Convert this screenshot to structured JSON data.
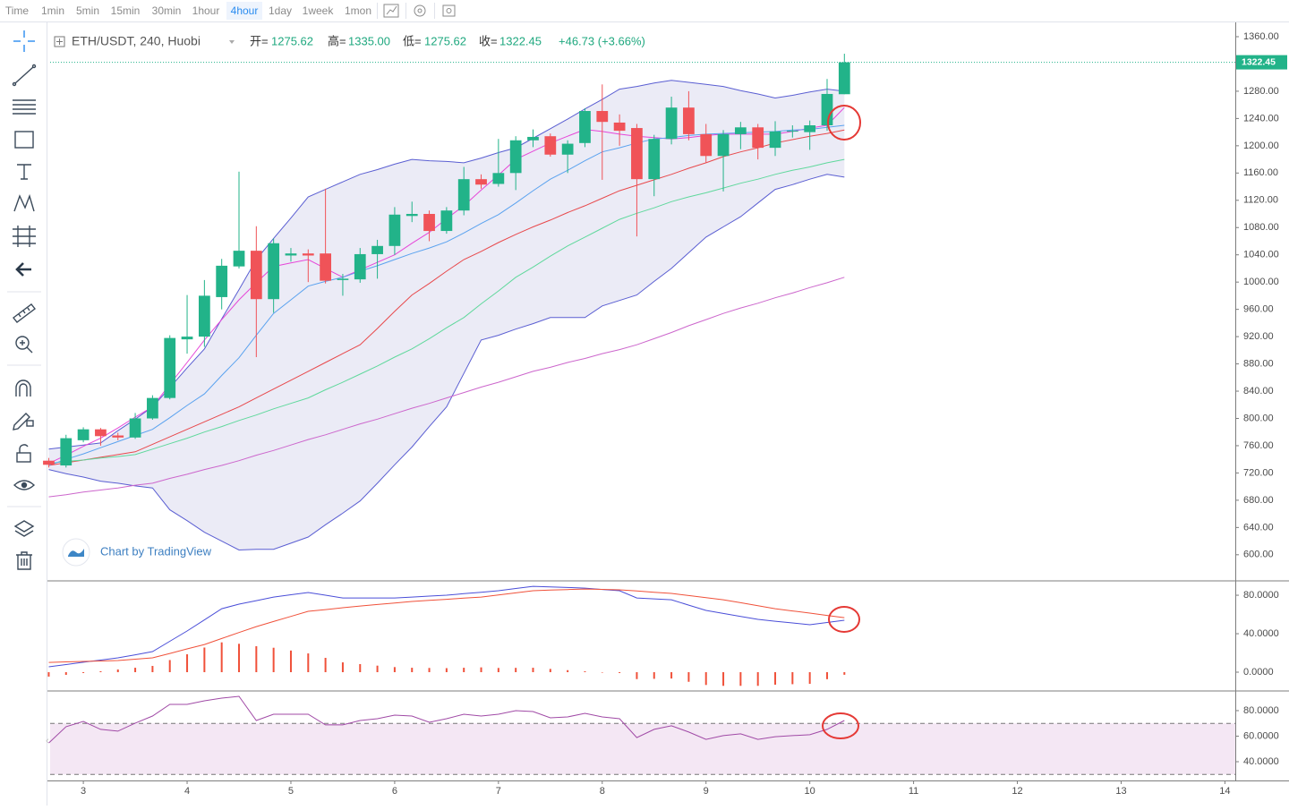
{
  "toolbar": {
    "intervals": [
      "Time",
      "1min",
      "5min",
      "15min",
      "30min",
      "1hour",
      "4hour",
      "1day",
      "1week",
      "1mon"
    ],
    "active": 6
  },
  "header": {
    "symbol": "ETH/USDT, 240, Huobi",
    "open_label": "开=",
    "open": "1275.62",
    "high_label": "高=",
    "high": "1335.00",
    "low_label": "低=",
    "low": "1275.62",
    "close_label": "收=",
    "close": "1322.45",
    "change": "+46.73 (+3.66%)"
  },
  "watermark": "Chart by TradingView",
  "chart_data": [
    {
      "type": "candlestick",
      "title": "ETH/USDT, 240, Huobi",
      "x": [
        2.6667,
        2.8333,
        3,
        3.1667,
        3.3333,
        3.5,
        3.6667,
        3.8333,
        4,
        4.1667,
        4.3333,
        4.5,
        4.6667,
        4.8333,
        5,
        5.1667,
        5.3333,
        5.5,
        5.6667,
        5.8333,
        6,
        6.1667,
        6.3333,
        6.5,
        6.6667,
        6.8333,
        7,
        7.1667,
        7.3333,
        7.5,
        7.6667,
        7.8333,
        8,
        8.1667,
        8.3333,
        8.5,
        8.6667,
        8.8333,
        9,
        9.1667,
        9.3333,
        9.5,
        9.6667,
        9.8333,
        10,
        10.1667,
        10.3333
      ],
      "open": [
        738,
        731,
        768,
        784,
        775,
        772,
        800,
        830,
        916,
        920,
        978,
        1023,
        1046,
        975,
        1039,
        1042,
        1042,
        1003,
        1004,
        1041,
        1053,
        1097,
        1100,
        1075,
        1105,
        1151,
        1144,
        1160,
        1208,
        1214,
        1187,
        1204,
        1251,
        1234,
        1226,
        1151,
        1210,
        1256,
        1217,
        1185,
        1217,
        1227,
        1197,
        1221,
        1220,
        1230,
        1275.62
      ],
      "high": [
        742,
        776,
        787,
        786,
        779,
        808,
        834,
        922,
        981,
        1003,
        1034,
        1162,
        1082,
        1064,
        1050,
        1048,
        1137,
        1012,
        1050,
        1062,
        1110,
        1118,
        1105,
        1110,
        1169,
        1158,
        1210,
        1214,
        1224,
        1218,
        1208,
        1255,
        1290,
        1246,
        1232,
        1216,
        1272,
        1280,
        1232,
        1223,
        1235,
        1232,
        1236,
        1230,
        1237,
        1298,
        1335
      ],
      "low": [
        728,
        728,
        765,
        760,
        768,
        770,
        798,
        828,
        895,
        905,
        960,
        1020,
        890,
        955,
        1030,
        1000,
        998,
        980,
        999,
        1005,
        1040,
        1088,
        1060,
        1071,
        1098,
        1137,
        1140,
        1135,
        1198,
        1184,
        1160,
        1198,
        1150,
        1200,
        1067,
        1126,
        1202,
        1208,
        1175,
        1133,
        1195,
        1180,
        1185,
        1212,
        1194,
        1222,
        1275.62
      ],
      "close": [
        732,
        771,
        784,
        774,
        772,
        800,
        830,
        918,
        920,
        980,
        1024,
        1046,
        975,
        1057,
        1042,
        1039,
        1002,
        1005,
        1041,
        1053,
        1099,
        1100,
        1075,
        1105,
        1151,
        1143,
        1160,
        1208,
        1213,
        1187,
        1203,
        1251,
        1235,
        1222,
        1151,
        1210,
        1256,
        1217,
        1185,
        1217,
        1227,
        1197,
        1221,
        1222,
        1230,
        1276,
        1322.45
      ],
      "up_color": "#22b389",
      "down_color": "#f05358",
      "band": {
        "color": "#5a5ed2",
        "fill": "#e7e7f4",
        "upper": [
          755,
          758,
          761,
          764,
          782,
          799,
          817,
          845,
          874,
          902,
          946,
          989,
          1033,
          1064,
          1094,
          1125,
          1136,
          1147,
          1158,
          1165,
          1173,
          1180,
          1178,
          1177,
          1175,
          1182,
          1190,
          1197,
          1211,
          1225,
          1239,
          1254,
          1268,
          1283,
          1287,
          1292,
          1296,
          1293,
          1290,
          1287,
          1281,
          1276,
          1270,
          1274,
          1279,
          1283,
          1280
        ],
        "lower": [
          725,
          719,
          714,
          708,
          705,
          701,
          698,
          666,
          650,
          633,
          620,
          607,
          608,
          608,
          617,
          626,
          644,
          661,
          679,
          705,
          732,
          758,
          788,
          817,
          866,
          915,
          922,
          931,
          939,
          948,
          948,
          948,
          965,
          973,
          981,
          1001,
          1020,
          1043,
          1066,
          1081,
          1096,
          1116,
          1136,
          1143,
          1151,
          1158,
          1154
        ]
      },
      "series": [
        {
          "color": "#e8484b",
          "values": [
            731,
            735,
            739,
            743,
            747,
            751,
            762,
            773,
            784,
            795,
            806,
            817,
            830,
            843,
            856,
            869,
            882,
            895,
            908,
            932,
            957,
            981,
            998,
            1016,
            1033,
            1045,
            1058,
            1070,
            1081,
            1091,
            1102,
            1112,
            1123,
            1134,
            1142,
            1150,
            1158,
            1167,
            1175,
            1184,
            1191,
            1197,
            1204,
            1209,
            1214,
            1218,
            1223
          ]
        },
        {
          "color": "#5fd89c",
          "values": [
            734,
            737,
            739,
            742,
            744,
            747,
            755,
            763,
            771,
            780,
            788,
            797,
            805,
            814,
            822,
            830,
            842,
            853,
            865,
            877,
            890,
            902,
            917,
            933,
            948,
            968,
            987,
            1007,
            1022,
            1038,
            1053,
            1066,
            1079,
            1092,
            1101,
            1109,
            1118,
            1125,
            1131,
            1138,
            1145,
            1151,
            1158,
            1164,
            1169,
            1175,
            1180
          ]
        },
        {
          "color": "#cc66cc",
          "values": [
            685,
            688,
            692,
            695,
            698,
            702,
            705,
            712,
            718,
            725,
            731,
            738,
            746,
            753,
            761,
            769,
            776,
            784,
            792,
            799,
            807,
            815,
            822,
            830,
            838,
            846,
            853,
            861,
            869,
            875,
            882,
            888,
            895,
            901,
            908,
            917,
            926,
            936,
            945,
            954,
            962,
            969,
            977,
            984,
            992,
            999,
            1007
          ]
        },
        {
          "color": "#e646d8",
          "values": [
            734,
            746,
            759,
            771,
            786,
            802,
            817,
            850,
            882,
            915,
            945,
            974,
            999,
            1023,
            1028,
            1033,
            1020,
            1007,
            1018,
            1029,
            1040,
            1057,
            1073,
            1093,
            1112,
            1135,
            1157,
            1180,
            1192,
            1204,
            1214,
            1224,
            1221,
            1217,
            1214,
            1212,
            1210,
            1212,
            1215,
            1217,
            1217,
            1217,
            1217,
            1221,
            1226,
            1230,
            1256
          ]
        },
        {
          "color": "#5aa2ef",
          "values": [
            731,
            740,
            748,
            757,
            766,
            775,
            784,
            801,
            819,
            836,
            863,
            889,
            922,
            954,
            974,
            994,
            1001,
            1007,
            1016,
            1024,
            1033,
            1042,
            1050,
            1059,
            1072,
            1086,
            1099,
            1116,
            1134,
            1151,
            1164,
            1178,
            1191,
            1197,
            1204,
            1210,
            1212,
            1215,
            1217,
            1218,
            1219,
            1220,
            1221,
            1223,
            1224,
            1227,
            1230
          ]
        }
      ],
      "xlim": [
        2.68,
        14.1
      ],
      "xticks": [
        3,
        4,
        5,
        6,
        7,
        8,
        9,
        10,
        11,
        12,
        13,
        14
      ],
      "ylim": [
        563,
        1381
      ],
      "yticks": [
        {
          "value": 600,
          "label": "600.00"
        },
        {
          "value": 640,
          "label": "640.00"
        },
        {
          "value": 680,
          "label": "680.00"
        },
        {
          "value": 720,
          "label": "720.00"
        },
        {
          "value": 760,
          "label": "760.00"
        },
        {
          "value": 800,
          "label": "800.00"
        },
        {
          "value": 840,
          "label": "840.00"
        },
        {
          "value": 880,
          "label": "880.00"
        },
        {
          "value": 920,
          "label": "920.00"
        },
        {
          "value": 960,
          "label": "960.00"
        },
        {
          "value": 1000,
          "label": "1000.00"
        },
        {
          "value": 1040,
          "label": "1040.00"
        },
        {
          "value": 1080,
          "label": "1080.00"
        },
        {
          "value": 1120,
          "label": "1120.00"
        },
        {
          "value": 1160,
          "label": "1160.00"
        },
        {
          "value": 1200,
          "label": "1200.00"
        },
        {
          "value": 1240,
          "label": "1240.00"
        },
        {
          "value": 1280,
          "label": "1280.00"
        },
        {
          "value": 1320,
          "label": "1320.00"
        },
        {
          "value": 1360,
          "label": "1360.00"
        }
      ],
      "grid": false
    },
    {
      "type": "line",
      "series": [
        {
          "color": "#f0513a",
          "style": "bar",
          "values": [
            -4.6,
            -2.8,
            -0.9,
            1.0,
            2.8,
            4.6,
            6.5,
            12.6,
            18.6,
            25.6,
            31,
            29.5,
            27,
            25.4,
            22.5,
            19.5,
            14.9,
            10.2,
            8.4,
            6.8,
            5.3,
            4.6,
            4.4,
            4.2,
            4.6,
            5,
            4.4,
            4.5,
            4.6,
            3.4,
            2.1,
            0.9,
            -0.1,
            -0.9,
            -7.2,
            -6.9,
            -6.6,
            -10,
            -13.3,
            -14.2,
            -14.2,
            -14.2,
            -13,
            -12.5,
            -12.1,
            -7.3,
            -2.7
          ]
        },
        {
          "color": "#4a4ed8",
          "style": "line",
          "values": [
            5.6,
            7.9,
            10.3,
            12.6,
            14.9,
            18.1,
            21.4,
            32.1,
            42.8,
            54.4,
            66,
            70.7,
            74.4,
            78.1,
            80.5,
            82.8,
            80,
            77.2,
            77.2,
            77.2,
            77.2,
            78.1,
            79.1,
            80,
            81.6,
            83.1,
            84.7,
            87,
            89.3,
            88.7,
            88,
            87.4,
            86,
            84.7,
            77.2,
            76.2,
            75.3,
            69.7,
            64.2,
            61.1,
            58,
            54.9,
            53,
            51.2,
            49.3,
            51.7,
            54
          ]
        },
        {
          "color": "#f0513a",
          "style": "line",
          "values": [
            10.2,
            10.7,
            11.2,
            11.6,
            12.1,
            13.5,
            14.9,
            19.5,
            24.2,
            28.8,
            35,
            41.2,
            47.4,
            52.7,
            58,
            63.3,
            65.1,
            67,
            68.8,
            70.4,
            71.9,
            73.5,
            74.7,
            75.8,
            77,
            78.1,
            80.3,
            82.5,
            84.7,
            85.3,
            85.9,
            86.5,
            86.1,
            85.6,
            84.4,
            83.1,
            81.9,
            79.7,
            77.5,
            75.3,
            72.2,
            69.1,
            66,
            63.7,
            61.4,
            59,
            56.7
          ]
        }
      ],
      "ylim": [
        -18.6,
        94
      ],
      "yticks": [
        {
          "value": 0,
          "label": "0.0000"
        },
        {
          "value": 40,
          "label": "40.0000"
        },
        {
          "value": 80,
          "label": "80.0000"
        }
      ]
    },
    {
      "type": "line",
      "series": [
        {
          "color": "#a04aa6",
          "style": "line",
          "values": [
            54.7,
            67.4,
            71.6,
            65.3,
            63.9,
            70.2,
            75.8,
            84.9,
            84.9,
            87.7,
            89.8,
            91.2,
            72.3,
            77.2,
            77.2,
            77.2,
            68.8,
            68.8,
            72.3,
            73.7,
            76.5,
            75.8,
            70.9,
            73.7,
            77.2,
            75.8,
            77.2,
            80,
            79.3,
            74.4,
            75.1,
            77.9,
            75.1,
            73.7,
            58.9,
            65.3,
            68.1,
            63.2,
            57.5,
            60.4,
            61.8,
            57.5,
            59.6,
            60.4,
            61.1,
            65.3,
            72.3
          ]
        }
      ],
      "hlines": [
        70,
        30
      ],
      "band_fill": "#f4e7f4",
      "ylim": [
        25.3,
        94.7
      ],
      "yticks": [
        {
          "value": 40,
          "label": "40.0000"
        },
        {
          "value": 60,
          "label": "60.0000"
        },
        {
          "value": 80,
          "label": "80.0000"
        }
      ]
    }
  ]
}
